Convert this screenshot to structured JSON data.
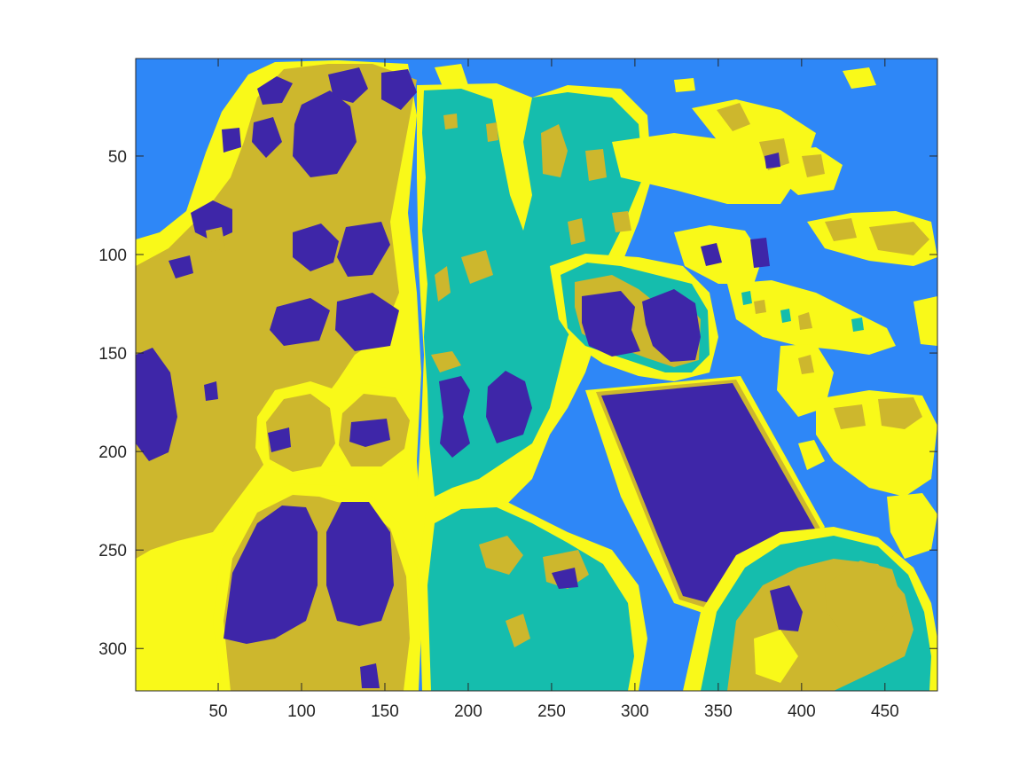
{
  "figure": {
    "background": "#ffffff"
  },
  "chart_data": {
    "type": "heatmap",
    "title": "",
    "xlabel": "",
    "ylabel": "",
    "xlim": [
      0.5,
      481.5
    ],
    "ylim": [
      0.5,
      321.5
    ],
    "y_direction": "reverse",
    "grid": false,
    "legend": "none",
    "colormap": "parula",
    "cluster_levels": 5,
    "cluster_colors": [
      "#3e26a8",
      "#2e87f7",
      "#15bdad",
      "#cdb72d",
      "#f9f919"
    ],
    "background_cluster_color": "#2e87f7",
    "x_ticks": [
      50,
      100,
      150,
      200,
      250,
      300,
      350,
      400,
      450
    ],
    "x_tick_labels": [
      "50",
      "100",
      "150",
      "200",
      "250",
      "300",
      "350",
      "400",
      "450"
    ],
    "y_ticks": [
      50,
      100,
      150,
      200,
      250,
      300
    ],
    "y_tick_labels": [
      "50",
      "100",
      "150",
      "200",
      "250",
      "300"
    ]
  }
}
